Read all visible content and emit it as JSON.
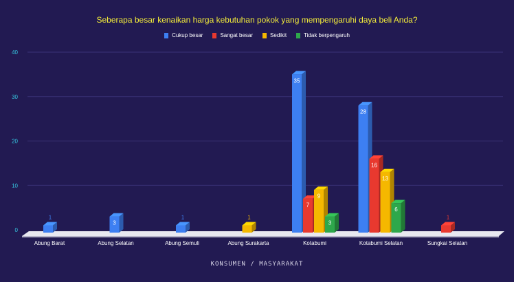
{
  "chart_data": {
    "type": "bar",
    "title": "Seberapa besar kenaikan harga kebutuhan pokok yang mempengaruhi daya beli Anda?",
    "xlabel": "KONSUMEN / MASYARAKAT",
    "ylabel": "",
    "ylim": [
      0,
      40
    ],
    "yticks": [
      0,
      10,
      20,
      30,
      40
    ],
    "grid": true,
    "legend_position": "top",
    "categories": [
      "Abung Barat",
      "Abung Selatan",
      "Abung Semuli",
      "Abung Surakarta",
      "Kotabumi",
      "Kotabumi Selatan",
      "Sungkai Selatan"
    ],
    "series": [
      {
        "name": "Cukup besar",
        "color": "#3d7ff2",
        "values": [
          1,
          3,
          1,
          null,
          35,
          28,
          null
        ]
      },
      {
        "name": "Sangat besar",
        "color": "#e8392f",
        "values": [
          null,
          null,
          null,
          null,
          7,
          16,
          1
        ]
      },
      {
        "name": "Sedikit",
        "color": "#f5b800",
        "values": [
          null,
          null,
          null,
          1,
          9,
          13,
          null
        ]
      },
      {
        "name": "Tidak berpengaruh",
        "color": "#2ea84b",
        "values": [
          null,
          null,
          null,
          null,
          3,
          6,
          null
        ]
      }
    ]
  }
}
